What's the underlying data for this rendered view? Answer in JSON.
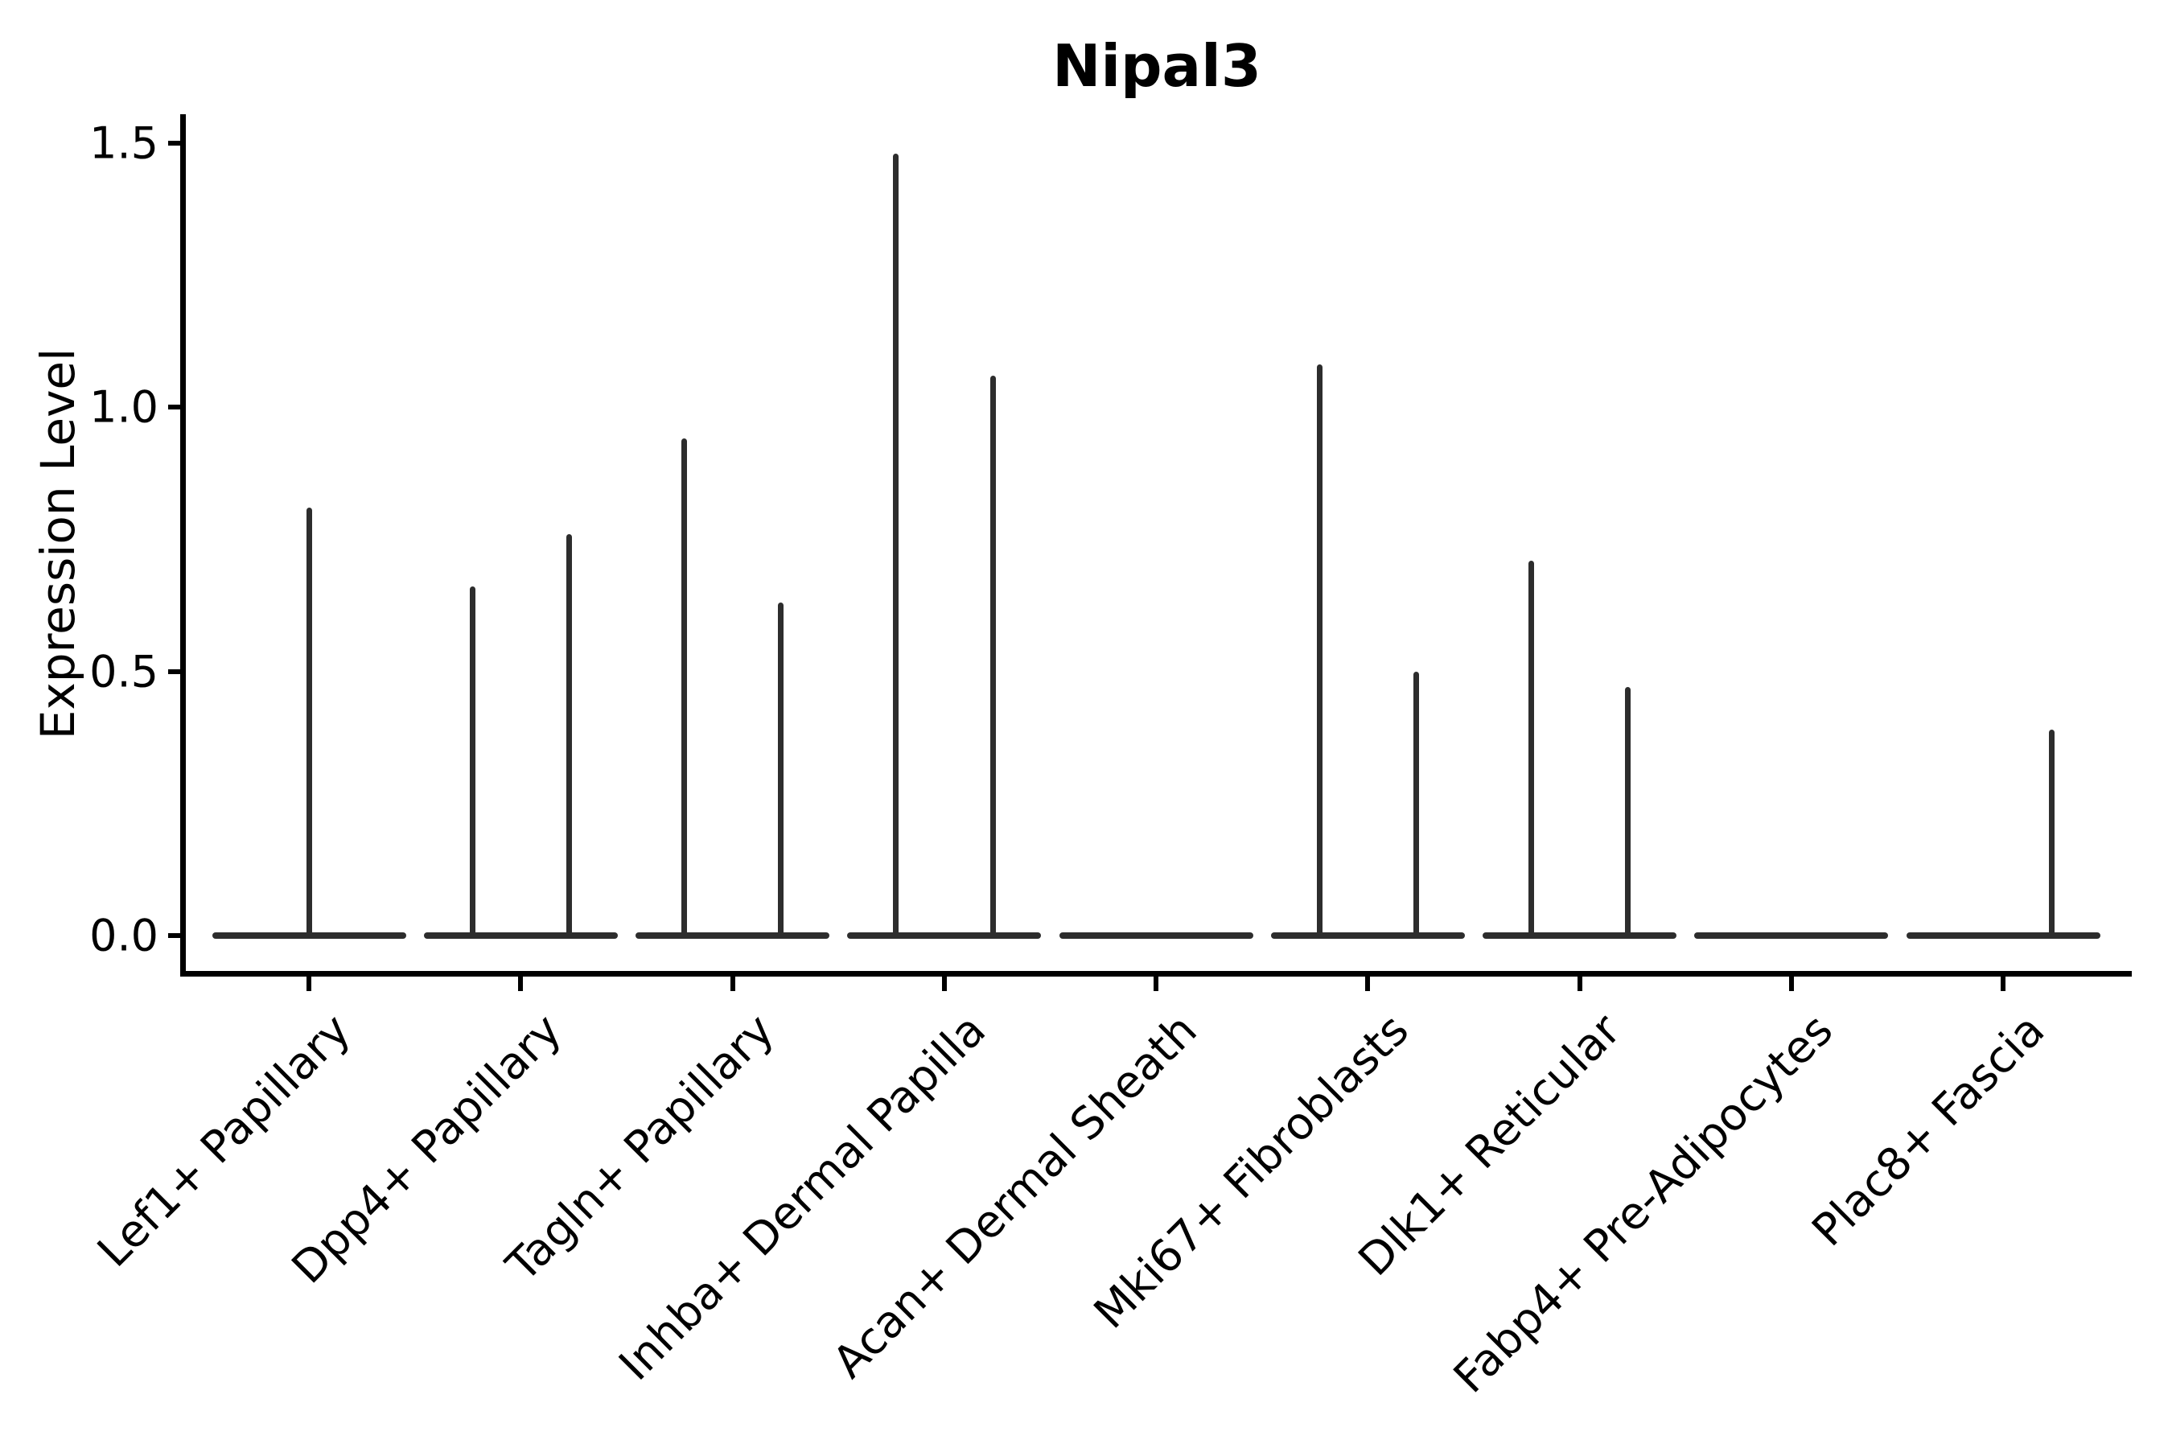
{
  "chart_data": {
    "type": "violin",
    "title": "Nipal3",
    "ylabel": "Expression Level",
    "xlabel": "",
    "ylim": [
      0,
      1.55
    ],
    "grid": false,
    "legend": "none",
    "line_color": "#2d2d2d",
    "axis_color": "#000000",
    "y_ticks": [
      {
        "label": "0.0",
        "value": 0.0
      },
      {
        "label": "0.5",
        "value": 0.5
      },
      {
        "label": "1.0",
        "value": 1.0
      },
      {
        "label": "1.5",
        "value": 1.5
      }
    ],
    "categories": [
      {
        "label": "Lef1+ Papillary",
        "violins": [
          {
            "position": 0.5,
            "peak": 0.81
          }
        ]
      },
      {
        "label": "Dpp4+ Papillary",
        "violins": [
          {
            "position": 0.25,
            "peak": 0.66
          },
          {
            "position": 0.75,
            "peak": 0.76
          }
        ]
      },
      {
        "label": "Tagln+ Papillary",
        "violins": [
          {
            "position": 0.25,
            "peak": 0.94
          },
          {
            "position": 0.75,
            "peak": 0.63
          }
        ]
      },
      {
        "label": "Inhba+ Dermal Papilla",
        "violins": [
          {
            "position": 0.25,
            "peak": 1.48
          },
          {
            "position": 0.75,
            "peak": 1.06
          }
        ]
      },
      {
        "label": "Acan+ Dermal Sheath",
        "violins": []
      },
      {
        "label": "Mki67+ Fibroblasts",
        "violins": [
          {
            "position": 0.25,
            "peak": 1.08
          },
          {
            "position": 0.75,
            "peak": 0.5
          }
        ]
      },
      {
        "label": "Dlk1+ Reticular",
        "violins": [
          {
            "position": 0.25,
            "peak": 0.71
          },
          {
            "position": 0.75,
            "peak": 0.47
          }
        ]
      },
      {
        "label": "Fabp4+ Pre-Adipocytes",
        "violins": []
      },
      {
        "label": "Plac8+ Fascia",
        "violins": [
          {
            "position": 0.75,
            "peak": 0.39
          }
        ]
      }
    ]
  }
}
